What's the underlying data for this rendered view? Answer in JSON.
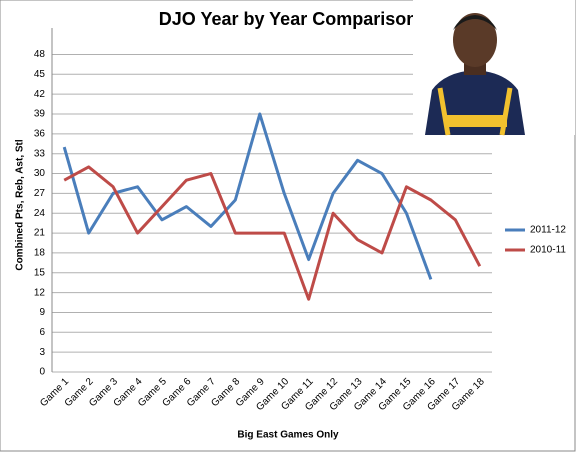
{
  "chart_data": {
    "type": "line",
    "title": "DJO Year by Year Comparison",
    "x_label": "Big East Games Only",
    "y_label": "Combined Pts, Reb, Ast, Stl",
    "categories": [
      "Game 1",
      "Game 2",
      "Game 3",
      "Game 4",
      "Game 5",
      "Game 6",
      "Game 7",
      "Game 8",
      "Game 9",
      "Game 10",
      "Game 11",
      "Game 12",
      "Game 13",
      "Game 14",
      "Game 15",
      "Game 16",
      "Game 17",
      "Game 18"
    ],
    "series": [
      {
        "name": "2011-12",
        "color": "#4a7ebb",
        "values": [
          34,
          21,
          27,
          28,
          23,
          25,
          22,
          26,
          39,
          27,
          17,
          27,
          32,
          30,
          24,
          14,
          null,
          null
        ]
      },
      {
        "name": "2010-11",
        "color": "#be4b48",
        "values": [
          29,
          31,
          28,
          21,
          25,
          29,
          30,
          21,
          21,
          21,
          11,
          24,
          20,
          18,
          28,
          26,
          23,
          16
        ]
      }
    ],
    "ylim": [
      0,
      52
    ],
    "yticks": [
      0,
      3,
      6,
      9,
      12,
      15,
      18,
      21,
      24,
      27,
      30,
      33,
      36,
      39,
      42,
      45,
      48
    ],
    "grid": true,
    "legend": "right"
  }
}
